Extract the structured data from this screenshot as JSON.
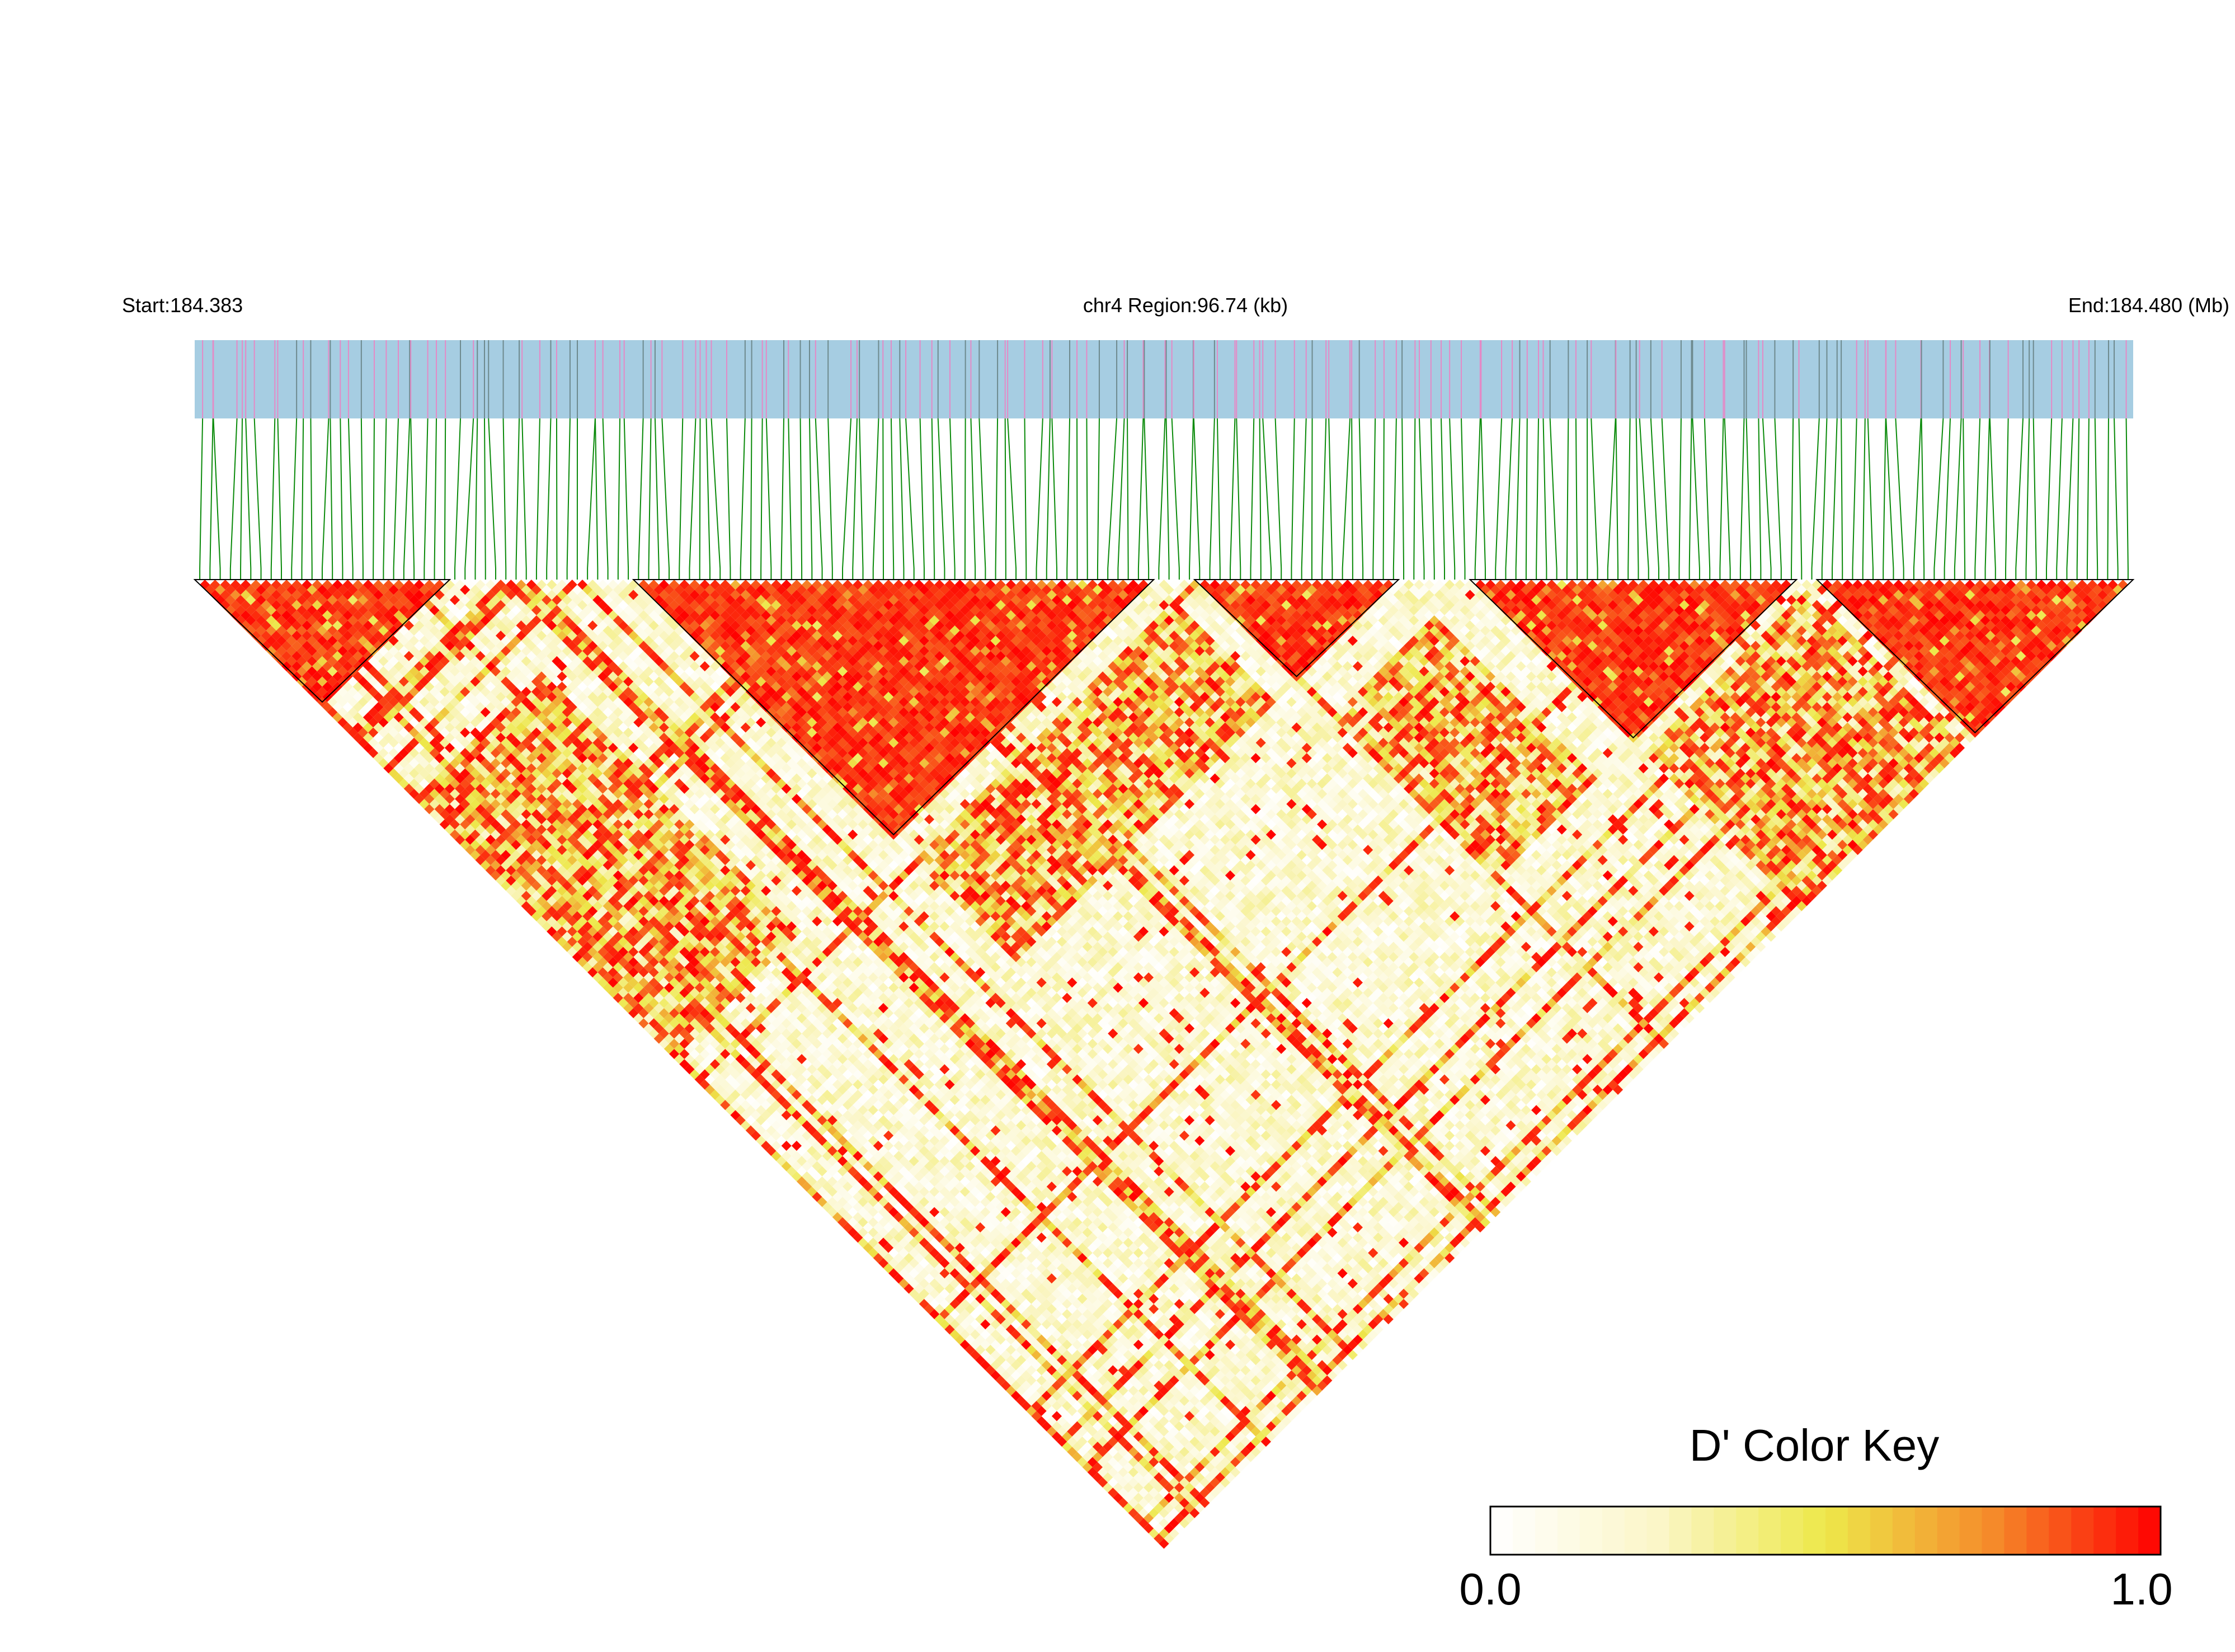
{
  "header": {
    "start_label": "Start:184.383",
    "region_label": "chr4 Region:96.74 (kb)",
    "end_label": "End:184.480 (Mb)"
  },
  "colors": {
    "track_background": "#a6cde2",
    "snp_mark_gray": "#6e8a8e",
    "snp_mark_pink": "#e48ac6",
    "connector_green": "#0a8a0a",
    "block_outline": "#000000",
    "d_low": "#ffffff",
    "d_mid": "#ede84a",
    "d_high": "#ff0000"
  },
  "chart_data": {
    "type": "heatmap",
    "title": "",
    "description_of_measure": "D'",
    "chromosome": "chr4",
    "region_start_mb": 184.383,
    "region_end_mb": 184.48,
    "region_length_kb": 96.74,
    "snp_count_approx": 190,
    "high_ld_blocks_mb": [
      [
        184.383,
        184.396
      ],
      [
        184.405,
        184.431
      ],
      [
        184.433,
        184.443
      ],
      [
        184.447,
        184.463
      ],
      [
        184.464,
        184.48
      ]
    ],
    "color_key": {
      "title": "D' Color Key",
      "min_label": "0.0",
      "max_label": "1.0",
      "min": 0.0,
      "max": 1.0
    }
  }
}
